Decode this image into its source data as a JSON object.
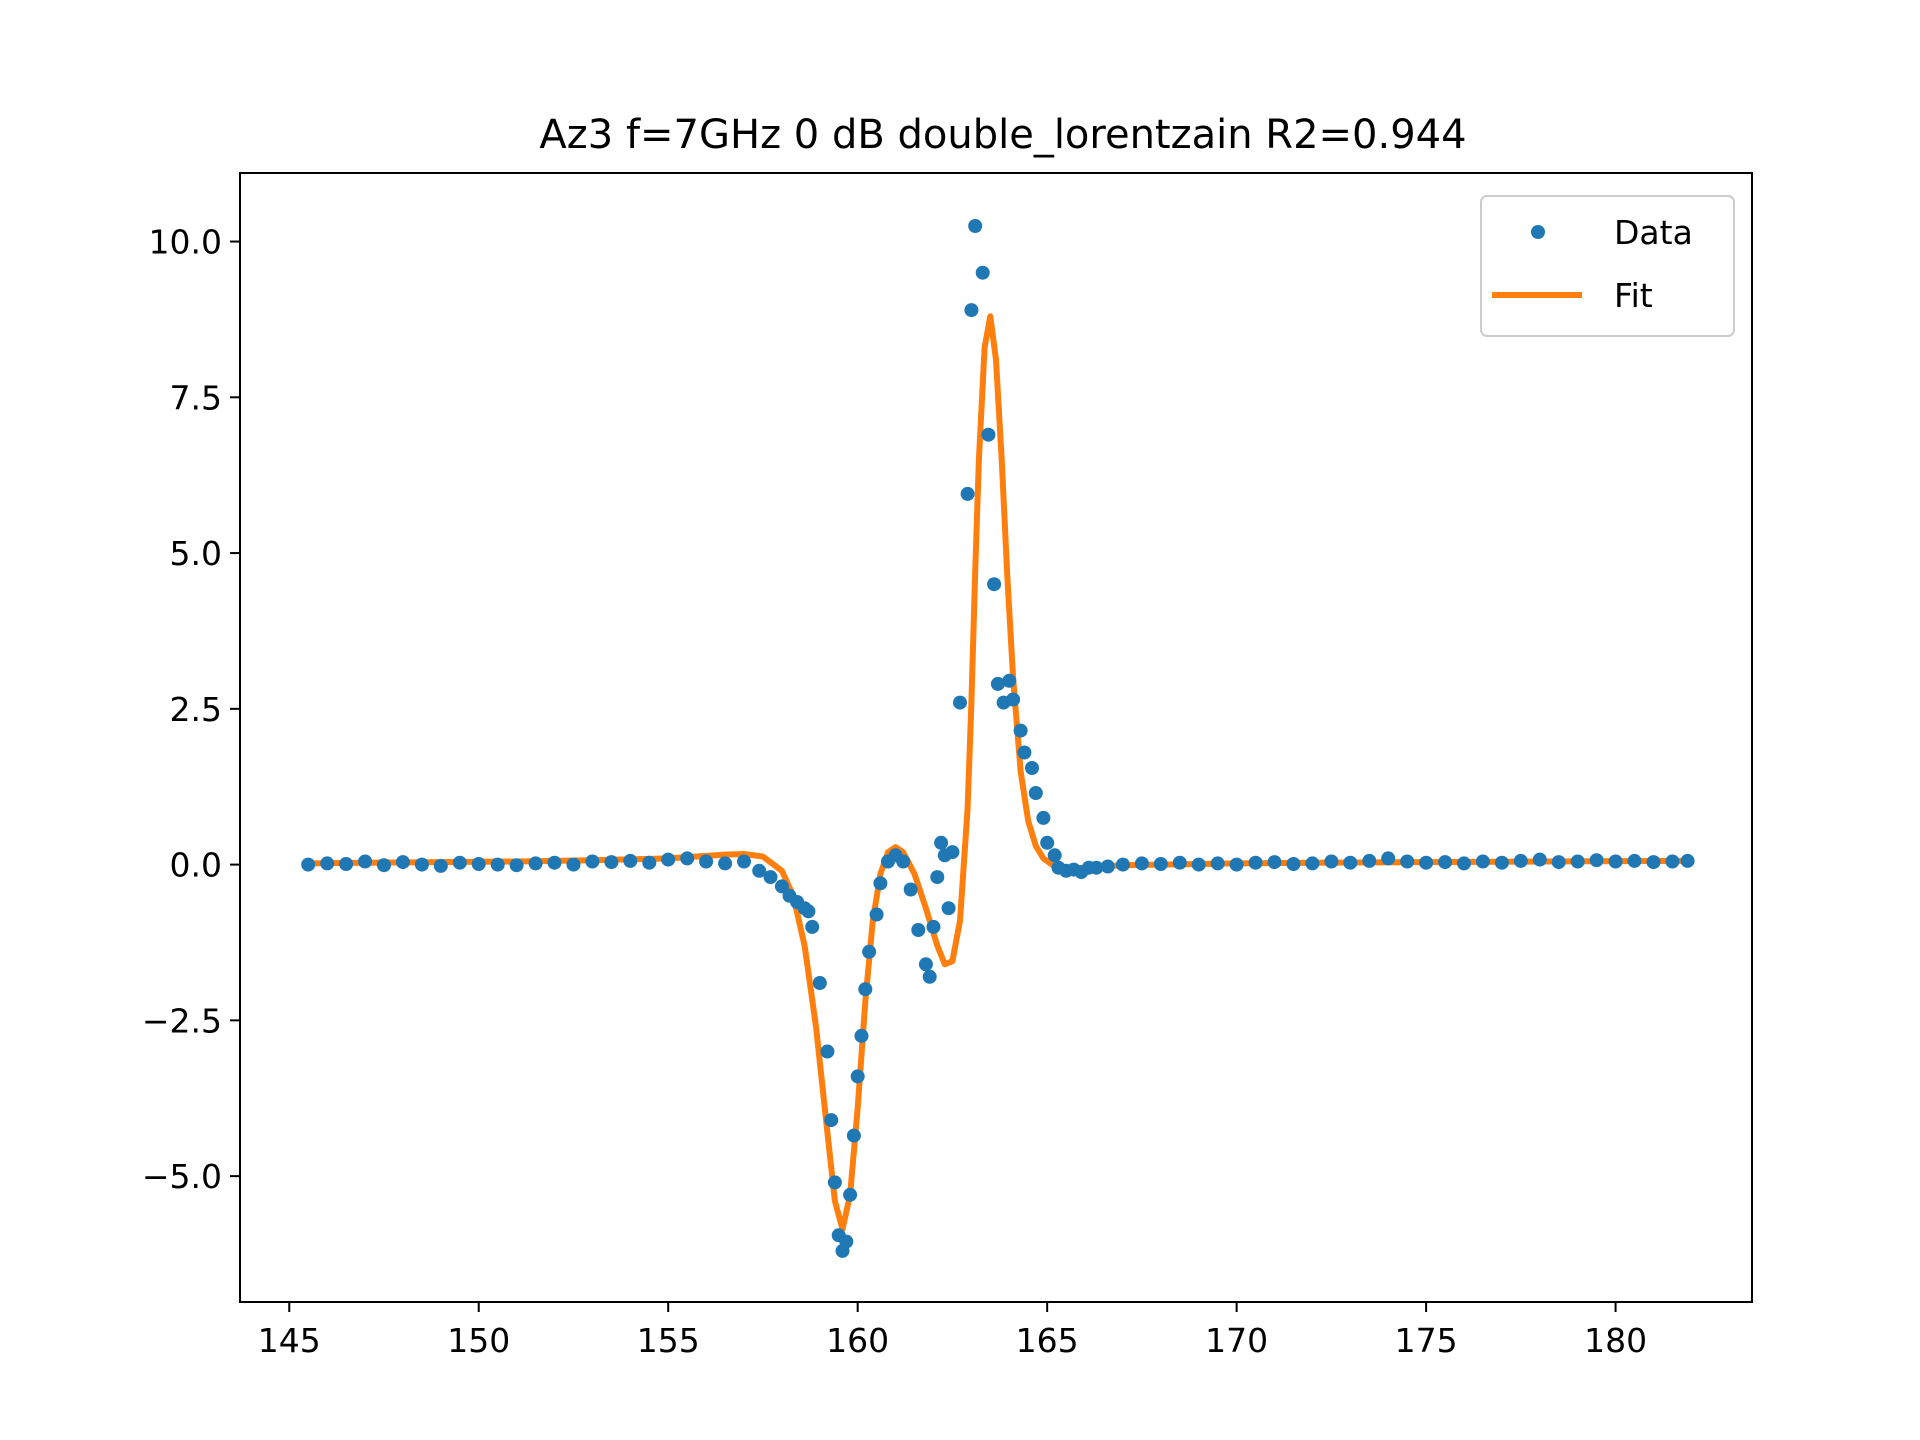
{
  "chart_data": {
    "type": "scatter",
    "title": "Az3 f=7GHz 0 dB double_lorentzain R2=0.944",
    "xlabel": "",
    "ylabel": "",
    "xlim": [
      143.7,
      183.6
    ],
    "ylim": [
      -7.02,
      11.1
    ],
    "grid": false,
    "legend_position": "top-right",
    "x_ticks": [
      145,
      150,
      155,
      160,
      165,
      170,
      175,
      180
    ],
    "x_tick_labels": [
      "145",
      "150",
      "155",
      "160",
      "165",
      "170",
      "175",
      "180"
    ],
    "y_ticks": [
      -5.0,
      -2.5,
      0.0,
      2.5,
      5.0,
      7.5,
      10.0
    ],
    "y_tick_labels": [
      "−5.0",
      "−2.5",
      "0.0",
      "2.5",
      "5.0",
      "7.5",
      "10.0"
    ],
    "colors": {
      "data": "#1f77b4",
      "fit": "#ff7f0e"
    },
    "legend": [
      {
        "label": "Data",
        "marker": "dot"
      },
      {
        "label": "Fit",
        "marker": "line"
      }
    ],
    "series": [
      {
        "name": "Data",
        "style": "markers",
        "x": [
          145.5,
          146.0,
          146.5,
          147.0,
          147.5,
          148.0,
          148.5,
          149.0,
          149.5,
          150.0,
          150.5,
          151.0,
          151.5,
          152.0,
          152.5,
          153.0,
          153.5,
          154.0,
          154.5,
          155.0,
          155.5,
          156.0,
          156.5,
          157.0,
          157.4,
          157.7,
          158.0,
          158.2,
          158.4,
          158.6,
          158.7,
          158.8,
          159.0,
          159.2,
          159.3,
          159.4,
          159.5,
          159.6,
          159.7,
          159.8,
          159.9,
          160.0,
          160.1,
          160.2,
          160.3,
          160.5,
          160.6,
          160.8,
          161.0,
          161.2,
          161.4,
          161.6,
          161.8,
          161.9,
          162.0,
          162.1,
          162.2,
          162.3,
          162.4,
          162.5,
          162.7,
          162.9,
          163.0,
          163.1,
          163.3,
          163.45,
          163.6,
          163.7,
          163.85,
          164.0,
          164.1,
          164.3,
          164.4,
          164.6,
          164.7,
          164.9,
          165.0,
          165.2,
          165.3,
          165.5,
          165.7,
          165.9,
          166.1,
          166.3,
          166.6,
          167.0,
          167.5,
          168.0,
          168.5,
          169.0,
          169.5,
          170.0,
          170.5,
          171.0,
          171.5,
          172.0,
          172.5,
          173.0,
          173.5,
          174.0,
          174.5,
          175.0,
          175.5,
          176.0,
          176.5,
          177.0,
          177.5,
          178.0,
          178.5,
          179.0,
          179.5,
          180.0,
          180.5,
          181.0,
          181.5,
          181.9
        ],
        "y": [
          0.0,
          0.02,
          0.01,
          0.05,
          -0.01,
          0.04,
          0.0,
          -0.02,
          0.03,
          0.01,
          0.0,
          -0.01,
          0.02,
          0.03,
          0.0,
          0.05,
          0.04,
          0.06,
          0.03,
          0.08,
          0.1,
          0.05,
          0.02,
          0.05,
          -0.1,
          -0.2,
          -0.35,
          -0.5,
          -0.6,
          -0.7,
          -0.75,
          -1.0,
          -1.9,
          -3.0,
          -4.1,
          -5.1,
          -5.95,
          -6.2,
          -6.05,
          -5.3,
          -4.35,
          -3.4,
          -2.75,
          -2.0,
          -1.4,
          -0.8,
          -0.3,
          0.05,
          0.15,
          0.05,
          -0.4,
          -1.05,
          -1.6,
          -1.8,
          -1.0,
          -0.2,
          0.35,
          0.15,
          -0.7,
          0.2,
          2.6,
          5.95,
          8.9,
          10.25,
          9.5,
          6.9,
          4.5,
          2.9,
          2.6,
          2.95,
          2.65,
          2.15,
          1.8,
          1.55,
          1.15,
          0.75,
          0.35,
          0.15,
          -0.05,
          -0.1,
          -0.08,
          -0.12,
          -0.05,
          -0.05,
          -0.03,
          0.0,
          0.02,
          0.01,
          0.03,
          0.0,
          0.02,
          0.0,
          0.03,
          0.04,
          0.01,
          0.02,
          0.05,
          0.03,
          0.06,
          0.1,
          0.05,
          0.03,
          0.04,
          0.02,
          0.05,
          0.03,
          0.06,
          0.08,
          0.04,
          0.05,
          0.07,
          0.05,
          0.06,
          0.04,
          0.05,
          0.06
        ]
      },
      {
        "name": "Fit",
        "style": "line",
        "x": [
          145.5,
          147,
          149,
          151,
          153,
          155,
          156,
          156.5,
          157,
          157.5,
          158.0,
          158.3,
          158.6,
          158.9,
          159.2,
          159.4,
          159.6,
          159.8,
          160.0,
          160.2,
          160.4,
          160.6,
          160.8,
          161.0,
          161.2,
          161.5,
          161.8,
          162.1,
          162.3,
          162.5,
          162.7,
          162.9,
          163.0,
          163.1,
          163.2,
          163.35,
          163.5,
          163.65,
          163.8,
          163.95,
          164.1,
          164.3,
          164.5,
          164.7,
          164.9,
          165.2,
          165.5,
          165.8,
          166.2,
          167.0,
          168.0,
          170.0,
          172.0,
          175.0,
          178.0,
          181.9
        ],
        "y": [
          0.02,
          0.03,
          0.04,
          0.05,
          0.07,
          0.1,
          0.14,
          0.16,
          0.17,
          0.13,
          -0.1,
          -0.5,
          -1.3,
          -2.6,
          -4.3,
          -5.4,
          -5.85,
          -5.3,
          -3.9,
          -2.2,
          -0.9,
          -0.15,
          0.2,
          0.28,
          0.2,
          -0.15,
          -0.7,
          -1.3,
          -1.6,
          -1.55,
          -0.9,
          0.9,
          2.6,
          4.7,
          6.5,
          8.3,
          8.8,
          8.1,
          6.5,
          4.6,
          3.0,
          1.5,
          0.7,
          0.3,
          0.1,
          -0.03,
          -0.08,
          -0.06,
          -0.04,
          -0.01,
          0.0,
          0.02,
          0.03,
          0.04,
          0.05,
          0.06
        ]
      }
    ]
  }
}
